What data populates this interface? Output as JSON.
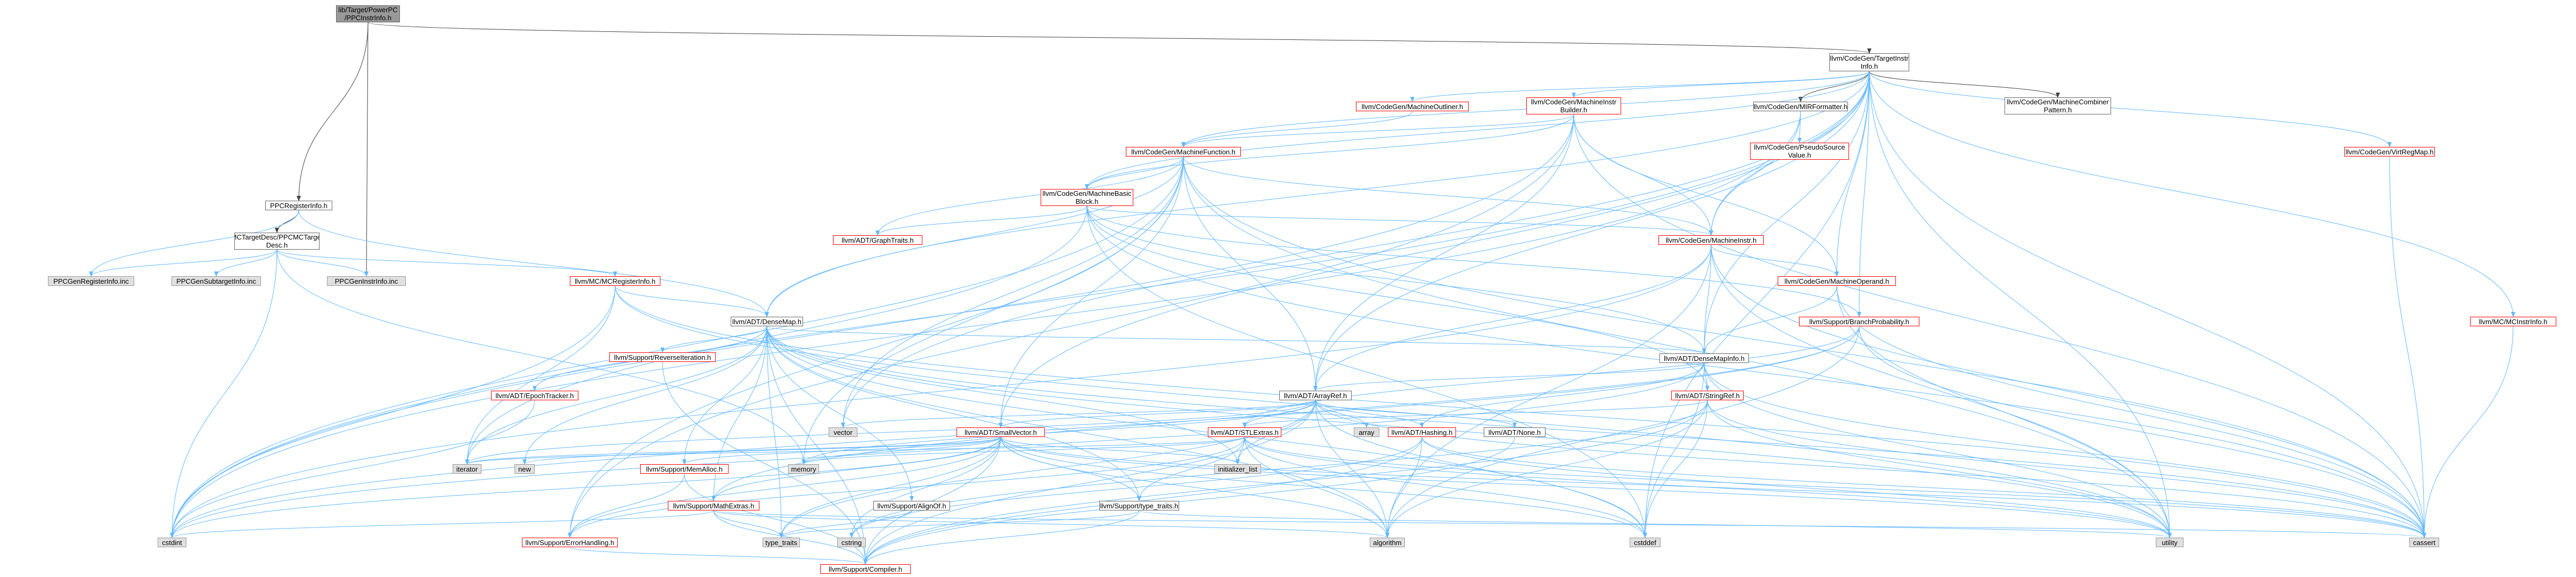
{
  "diagram": {
    "colors": {
      "edge": "#63b8ff",
      "edge_dark": "#404040",
      "node_border": "#666666",
      "node_red": "#ff0000",
      "node_gray": "#e0e0e0",
      "root_fill": "#999999"
    },
    "nodes": {
      "root": "lib/Target/PowerPC\n/PPCInstrInfo.h",
      "ti": "llvm/CodeGen/TargetInstr\nInfo.h",
      "ppcri": "PPCRegisterInfo.h",
      "mcdesc": "MCTargetDesc/PPCMCTarget\nDesc.h",
      "mcreg": "llvm/MC/MCRegisterInfo.h",
      "ppcreginc": "PPCGenRegisterInfo.inc",
      "ppcsubinc": "PPCGenSubtargetInfo.inc",
      "ppcinstrinc": "PPCGenInstrInfo.inc",
      "mo": "llvm/CodeGen/MachineOutliner.h",
      "mib": "llvm/CodeGen/MachineInstr\nBuilder.h",
      "mirf": "llvm/CodeGen/MIRFormatter.h",
      "mcp": "llvm/CodeGen/MachineCombiner\nPattern.h",
      "vrm": "llvm/CodeGen/VirtRegMap.h",
      "mf": "llvm/CodeGen/MachineFunction.h",
      "psv": "llvm/CodeGen/PseudoSource\nValue.h",
      "mbb": "llvm/CodeGen/MachineBasic\nBlock.h",
      "mi": "llvm/CodeGen/MachineInstr.h",
      "mop": "llvm/CodeGen/MachineOperand.h",
      "graph": "llvm/ADT/GraphTraits.h",
      "bp": "llvm/Support/BranchProbability.h",
      "mcii": "llvm/MC/MCInstrInfo.h",
      "dm": "llvm/ADT/DenseMap.h",
      "dmi": "llvm/ADT/DenseMapInfo.h",
      "rev": "llvm/Support/ReverseIteration.h",
      "epoch": "llvm/ADT/EpochTracker.h",
      "ar": "llvm/ADT/ArrayRef.h",
      "sr": "llvm/ADT/StringRef.h",
      "vector": "vector",
      "array": "array",
      "sv": "llvm/ADT/SmallVector.h",
      "stl": "llvm/ADT/STLExtras.h",
      "hash": "llvm/ADT/Hashing.h",
      "none": "llvm/ADT/None.h",
      "memalloc": "llvm/Support/MemAlloc.h",
      "iterator": "iterator",
      "new": "new",
      "memory": "memory",
      "init": "initializer_list",
      "mathex": "llvm/Support/MathExtras.h",
      "align": "llvm/Support/AlignOf.h",
      "typetraits_h": "llvm/Support/type_traits.h",
      "cstdint": "cstdint",
      "errh": "llvm/Support/ErrorHandling.h",
      "type_traits": "type_traits",
      "cstring": "cstring",
      "algorithm": "algorithm",
      "cstddef": "cstddef",
      "utility": "utility",
      "cassert": "cassert",
      "compiler": "llvm/Support/Compiler.h"
    }
  }
}
